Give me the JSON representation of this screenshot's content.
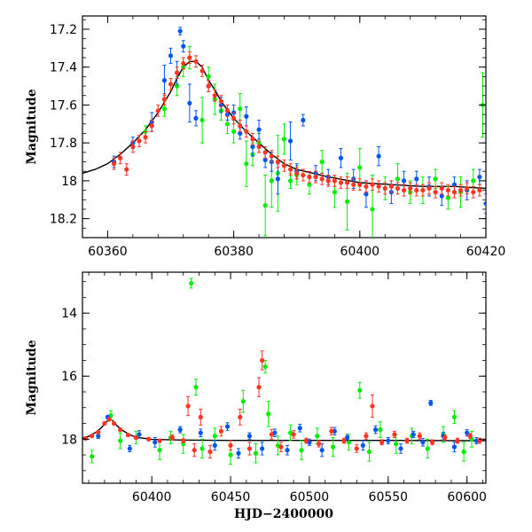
{
  "chart_data": [
    {
      "type": "scatter",
      "panel": "top",
      "title": "",
      "xlabel": "",
      "ylabel": "Magnitude",
      "xlim": [
        60356,
        60420
      ],
      "ylim": [
        18.3,
        17.13
      ],
      "y_inverted": true,
      "grid": false,
      "legend": "none",
      "xticks": [
        60360,
        60380,
        60400,
        60420
      ],
      "yticks": [
        17.2,
        17.4,
        17.6,
        17.8,
        18,
        18.2
      ],
      "model_curve": {
        "color": "#000000",
        "x": [
          60356,
          60358,
          60360,
          60362,
          60364,
          60366,
          60368,
          60370,
          60371,
          60372,
          60373,
          60374,
          60375,
          60376,
          60377,
          60378,
          60380,
          60382,
          60384,
          60386,
          60388,
          60390,
          60395,
          60400,
          60405,
          60410,
          60415,
          60420
        ],
        "y": [
          17.96,
          17.94,
          17.91,
          17.86,
          17.8,
          17.73,
          17.64,
          17.53,
          17.46,
          17.4,
          17.37,
          17.37,
          17.4,
          17.47,
          17.52,
          17.58,
          17.67,
          17.74,
          17.8,
          17.86,
          17.91,
          17.94,
          17.98,
          18.01,
          18.02,
          18.03,
          18.03,
          18.04
        ]
      },
      "series": [
        {
          "color": "#00ee00",
          "x": [
            60366,
            60369,
            60371,
            60372,
            60373,
            60375,
            60376,
            60377,
            60378,
            60379,
            60380,
            60381,
            60382,
            60383,
            60384,
            60385,
            60386,
            60387,
            60388,
            60389,
            60390,
            60392,
            60394,
            60396,
            60398,
            60400,
            60402,
            60404,
            60406,
            60408,
            60410,
            60412,
            60414,
            60416,
            60418,
            60419.5
          ],
          "y": [
            17.74,
            17.62,
            17.5,
            17.4,
            17.35,
            17.68,
            17.45,
            17.57,
            17.63,
            17.7,
            17.74,
            17.62,
            17.91,
            17.86,
            17.8,
            18.13,
            18.0,
            17.96,
            17.78,
            18.0,
            17.97,
            18.02,
            17.9,
            18.06,
            18.11,
            17.93,
            18.15,
            18.04,
            17.99,
            18.06,
            18.05,
            17.99,
            18.09,
            18.06,
            18.0,
            17.6
          ],
          "err": [
            0.03,
            0.04,
            0.05,
            0.05,
            0.06,
            0.12,
            0.05,
            0.08,
            0.05,
            0.05,
            0.06,
            0.08,
            0.12,
            0.06,
            0.05,
            0.16,
            0.14,
            0.2,
            0.08,
            0.04,
            0.05,
            0.05,
            0.06,
            0.08,
            0.15,
            0.1,
            0.18,
            0.06,
            0.08,
            0.06,
            0.07,
            0.05,
            0.06,
            0.08,
            0.06,
            0.17
          ]
        },
        {
          "color": "#0055ee",
          "x": [
            60361,
            60364,
            60367,
            60369,
            60370,
            60371,
            60371.5,
            60372,
            60373,
            60374,
            60376,
            60378,
            60379,
            60380,
            60381,
            60382,
            60383,
            60384,
            60385,
            60386,
            60387,
            60389,
            60390,
            60391,
            60393,
            60395,
            60397,
            60399,
            60401,
            60403,
            60405,
            60407,
            60409,
            60411,
            60413,
            60415,
            60417,
            60419,
            60420
          ],
          "y": [
            17.9,
            17.8,
            17.69,
            17.47,
            17.34,
            17.43,
            17.21,
            17.29,
            17.59,
            17.67,
            17.5,
            17.6,
            17.65,
            17.64,
            17.75,
            17.66,
            17.82,
            17.73,
            17.89,
            17.9,
            17.99,
            17.79,
            17.95,
            17.68,
            17.96,
            17.98,
            17.88,
            17.99,
            18.07,
            17.87,
            18.06,
            18.0,
            17.99,
            18.03,
            18.08,
            18.02,
            18.05,
            17.98,
            18.12
          ],
          "err": [
            0.03,
            0.03,
            0.05,
            0.08,
            0.04,
            0.06,
            0.02,
            0.03,
            0.1,
            0.04,
            0.03,
            0.04,
            0.03,
            0.04,
            0.03,
            0.05,
            0.05,
            0.05,
            0.04,
            0.05,
            0.08,
            0.1,
            0.04,
            0.03,
            0.04,
            0.04,
            0.05,
            0.05,
            0.07,
            0.05,
            0.06,
            0.05,
            0.04,
            0.05,
            0.05,
            0.04,
            0.05,
            0.04,
            0.05
          ]
        },
        {
          "color": "#ff3322",
          "x": [
            60361,
            60362,
            60363,
            60364,
            60365,
            60366,
            60367,
            60368,
            60369,
            60370,
            60371,
            60372,
            60373,
            60374,
            60375,
            60376,
            60377,
            60378,
            60379,
            60380,
            60381,
            60382,
            60383,
            60384,
            60385,
            60386,
            60387,
            60388,
            60389,
            60390,
            60391,
            60392,
            60393,
            60394,
            60395,
            60396,
            60397,
            60398,
            60399,
            60400,
            60401,
            60402,
            60403,
            60404,
            60405,
            60406,
            60407,
            60408,
            60409,
            60410,
            60411,
            60412,
            60413,
            60414,
            60415,
            60416,
            60417,
            60418,
            60419
          ],
          "y": [
            17.91,
            17.88,
            17.94,
            17.82,
            17.79,
            17.77,
            17.71,
            17.63,
            17.57,
            17.49,
            17.43,
            17.38,
            17.35,
            17.37,
            17.42,
            17.5,
            17.55,
            17.58,
            17.63,
            17.67,
            17.71,
            17.74,
            17.78,
            17.82,
            17.85,
            17.87,
            17.9,
            17.92,
            17.94,
            17.96,
            17.97,
            17.98,
            17.98,
            17.99,
            18.0,
            18.0,
            18.01,
            18.01,
            18.02,
            18.02,
            18.03,
            18.02,
            18.03,
            18.04,
            18.03,
            18.04,
            18.05,
            18.04,
            18.05,
            18.05,
            18.04,
            18.06,
            18.04,
            18.05,
            18.06,
            18.05,
            18.04,
            18.06,
            18.05
          ],
          "err": [
            0.03,
            0.03,
            0.03,
            0.03,
            0.03,
            0.03,
            0.03,
            0.03,
            0.03,
            0.03,
            0.03,
            0.03,
            0.03,
            0.03,
            0.03,
            0.03,
            0.03,
            0.03,
            0.03,
            0.03,
            0.03,
            0.03,
            0.03,
            0.03,
            0.03,
            0.03,
            0.03,
            0.03,
            0.03,
            0.03,
            0.03,
            0.03,
            0.03,
            0.03,
            0.03,
            0.03,
            0.03,
            0.03,
            0.03,
            0.03,
            0.03,
            0.03,
            0.03,
            0.03,
            0.03,
            0.03,
            0.03,
            0.03,
            0.03,
            0.03,
            0.03,
            0.03,
            0.03,
            0.03,
            0.03,
            0.03,
            0.03,
            0.03,
            0.03
          ]
        }
      ]
    },
    {
      "type": "scatter",
      "panel": "bottom",
      "title": "",
      "xlabel": "HJD−2400000",
      "ylabel": "Magnitude",
      "xlim": [
        60356,
        60612
      ],
      "ylim": [
        19.4,
        12.7
      ],
      "y_inverted": true,
      "grid": false,
      "legend": "none",
      "xticks": [
        60400,
        60450,
        60500,
        60550,
        60600
      ],
      "yticks": [
        14,
        16,
        18
      ],
      "model_curve": {
        "color": "#000000",
        "x": [
          60356,
          60360,
          60364,
          60368,
          60371,
          60373,
          60375,
          60378,
          60382,
          60386,
          60390,
          60400,
          60420,
          60450,
          60500,
          60550,
          60612
        ],
        "y": [
          17.96,
          17.91,
          17.8,
          17.64,
          17.46,
          17.37,
          17.4,
          17.58,
          17.74,
          17.86,
          17.94,
          18.01,
          18.03,
          18.04,
          18.04,
          18.04,
          18.05
        ]
      },
      "series": [
        {
          "color": "#00ee00",
          "x": [
            60362,
            60374,
            60380,
            60390,
            60405,
            60412,
            60420,
            60425,
            60428,
            60432,
            60440,
            60450,
            60458,
            60466,
            60472,
            60474,
            60480,
            60488,
            60495,
            60505,
            60515,
            60525,
            60532,
            60538,
            60545,
            60555,
            60565,
            60575,
            60585,
            60592,
            60598,
            60603
          ],
          "y": [
            18.55,
            17.25,
            18.05,
            17.95,
            18.35,
            17.95,
            18.15,
            13.05,
            16.35,
            18.3,
            17.9,
            18.5,
            16.8,
            18.45,
            15.7,
            17.2,
            18.2,
            17.8,
            18.35,
            17.9,
            18.25,
            18.1,
            16.45,
            18.4,
            17.7,
            18.15,
            17.9,
            18.3,
            17.85,
            17.3,
            18.4,
            18.0
          ],
          "err": [
            0.2,
            0.15,
            0.25,
            0.2,
            0.3,
            0.2,
            0.3,
            0.15,
            0.25,
            0.3,
            0.25,
            0.3,
            0.35,
            0.3,
            0.2,
            0.4,
            0.3,
            0.25,
            0.3,
            0.25,
            0.3,
            0.25,
            0.25,
            0.3,
            0.25,
            0.3,
            0.25,
            0.3,
            0.25,
            0.2,
            0.3,
            0.25
          ]
        },
        {
          "color": "#0055ee",
          "x": [
            60366,
            60372,
            60386,
            60392,
            60402,
            60418,
            60431,
            60440,
            60448,
            60455,
            60462,
            60470,
            60478,
            60486,
            60494,
            60500,
            60508,
            60516,
            60524,
            60534,
            60542,
            60550,
            60558,
            60566,
            60572,
            60577,
            60585,
            60592,
            60600,
            60606
          ],
          "y": [
            17.9,
            17.3,
            18.3,
            17.85,
            18.1,
            17.7,
            17.8,
            18.2,
            17.6,
            18.45,
            17.9,
            18.3,
            17.8,
            18.35,
            17.65,
            18.1,
            18.35,
            17.75,
            17.95,
            18.2,
            17.7,
            18.05,
            18.3,
            17.85,
            18.1,
            16.85,
            17.9,
            18.25,
            17.8,
            18.05
          ],
          "err": [
            0.08,
            0.05,
            0.1,
            0.12,
            0.15,
            0.1,
            0.12,
            0.15,
            0.12,
            0.15,
            0.1,
            0.2,
            0.12,
            0.15,
            0.12,
            0.1,
            0.2,
            0.12,
            0.1,
            0.15,
            0.12,
            0.1,
            0.15,
            0.1,
            0.12,
            0.08,
            0.12,
            0.15,
            0.1,
            0.1
          ]
        },
        {
          "color": "#ff3322",
          "x": [
            60358,
            60362,
            60366,
            60370,
            60373,
            60376,
            60380,
            60385,
            60390,
            60398,
            60405,
            60413,
            60420,
            60423,
            60427,
            60431,
            60437,
            60444,
            60450,
            60456,
            60462,
            60468,
            60470,
            60476,
            60482,
            60490,
            60498,
            60506,
            60514,
            60522,
            60530,
            60536,
            60540,
            60546,
            60554,
            60562,
            60570,
            60578,
            60586,
            60594,
            60602,
            60608
          ],
          "y": [
            17.98,
            17.9,
            17.78,
            17.5,
            17.37,
            17.5,
            17.7,
            17.87,
            17.95,
            18.0,
            18.05,
            17.95,
            18.05,
            16.95,
            18.35,
            17.3,
            18.4,
            17.75,
            18.2,
            17.3,
            18.3,
            16.35,
            15.5,
            17.85,
            18.25,
            17.85,
            18.05,
            18.15,
            17.75,
            18.05,
            18.3,
            17.9,
            16.95,
            18.1,
            17.85,
            18.05,
            17.9,
            18.1,
            17.95,
            18.05,
            17.9,
            18.05
          ],
          "err": [
            0.04,
            0.04,
            0.04,
            0.04,
            0.04,
            0.04,
            0.04,
            0.04,
            0.04,
            0.05,
            0.05,
            0.08,
            0.06,
            0.3,
            0.2,
            0.25,
            0.2,
            0.15,
            0.15,
            0.25,
            0.2,
            0.3,
            0.3,
            0.15,
            0.15,
            0.12,
            0.08,
            0.1,
            0.12,
            0.08,
            0.12,
            0.1,
            0.35,
            0.08,
            0.1,
            0.08,
            0.1,
            0.08,
            0.08,
            0.08,
            0.08,
            0.08
          ]
        }
      ]
    }
  ]
}
